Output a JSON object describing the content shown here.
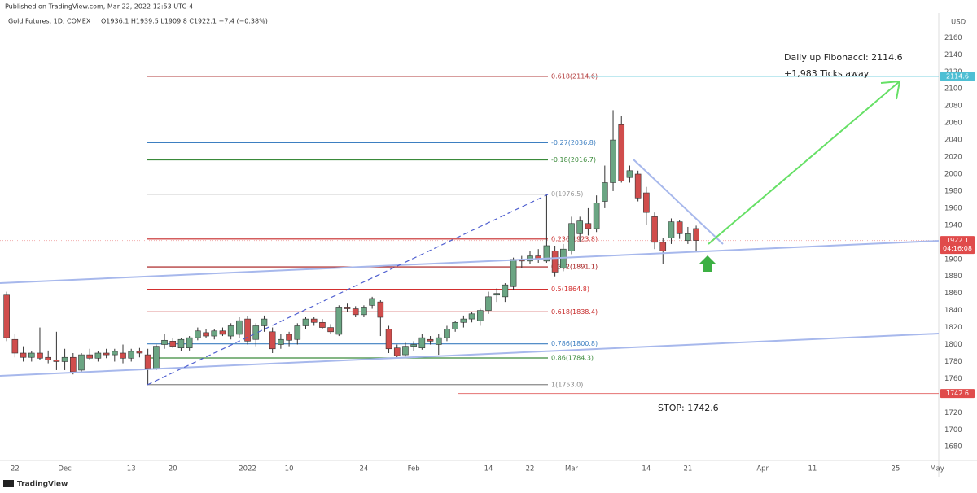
{
  "header": {
    "published": "Published on TradingView.com, Mar 22, 2022 12:53 UTC-4",
    "brand": "TradingView"
  },
  "chart_data": {
    "type": "candlestick",
    "title": "Gold Futures, 1D, COMEX",
    "ohlc_text": "O1936.1 H1939.5 L1909.8 C1922.1 −7.4 (−0.38%)",
    "currency": "USD",
    "up_color": "#6ba583",
    "down_color": "#d04d4c",
    "grid": false,
    "ylim": [
      1664,
      2189
    ],
    "yticks": [
      1680,
      1700,
      1720,
      1740,
      1760,
      1780,
      1800,
      1820,
      1840,
      1860,
      1880,
      1900,
      1920,
      1940,
      1960,
      1980,
      2000,
      2020,
      2040,
      2060,
      2080,
      2100,
      2120,
      2140,
      2160
    ],
    "xlim": [
      -0.8,
      112.1
    ],
    "xticks": [
      {
        "value": 1,
        "label": "22"
      },
      {
        "value": 7,
        "label": "Dec"
      },
      {
        "value": 15,
        "label": "13"
      },
      {
        "value": 20,
        "label": "20"
      },
      {
        "value": 29,
        "label": "2022"
      },
      {
        "value": 34,
        "label": "10"
      },
      {
        "value": 43,
        "label": "24"
      },
      {
        "value": 49,
        "label": "Feb"
      },
      {
        "value": 58,
        "label": "14"
      },
      {
        "value": 63,
        "label": "22"
      },
      {
        "value": 68,
        "label": "Mar"
      },
      {
        "value": 77,
        "label": "14"
      },
      {
        "value": 82,
        "label": "21"
      },
      {
        "value": 91,
        "label": "Apr"
      },
      {
        "value": 97,
        "label": "11"
      },
      {
        "value": 107,
        "label": "25"
      },
      {
        "value": 112,
        "label": "May"
      }
    ],
    "open": [
      1858,
      1806,
      1790,
      1785,
      1790,
      1785,
      1782,
      1780,
      1785,
      1770,
      1788,
      1784,
      1790,
      1788,
      1790,
      1784,
      1792,
      1788,
      1772,
      1800,
      1804,
      1796,
      1796,
      1808,
      1814,
      1810,
      1816,
      1810,
      1812,
      1830,
      1806,
      1822,
      1815,
      1800,
      1812,
      1806,
      1822,
      1830,
      1826,
      1820,
      1812,
      1844,
      1842,
      1835,
      1846,
      1850,
      1818,
      1796,
      1788,
      1798,
      1796,
      1806,
      1800,
      1808,
      1818,
      1826,
      1830,
      1828,
      1840,
      1858,
      1856,
      1868,
      1900,
      1898,
      1904,
      1898,
      1910,
      1890,
      1910,
      1930,
      1942,
      1936,
      1968,
      1990,
      2058,
      1996,
      2000,
      1978,
      1950,
      1920,
      1925,
      1944,
      1922,
      1936.1
    ],
    "high": [
      1862,
      1812,
      1798,
      1792,
      1820,
      1793,
      1815,
      1795,
      1790,
      1790,
      1795,
      1792,
      1795,
      1795,
      1800,
      1795,
      1796,
      1795,
      1800,
      1812,
      1808,
      1808,
      1810,
      1820,
      1818,
      1818,
      1820,
      1825,
      1832,
      1833,
      1825,
      1834,
      1820,
      1812,
      1815,
      1825,
      1832,
      1832,
      1830,
      1824,
      1846,
      1848,
      1845,
      1846,
      1856,
      1852,
      1822,
      1800,
      1802,
      1804,
      1812,
      1810,
      1812,
      1822,
      1828,
      1834,
      1838,
      1842,
      1862,
      1866,
      1872,
      1902,
      1904,
      1910,
      1912,
      1976,
      1916,
      1918,
      1950,
      1950,
      1960,
      1975,
      2010,
      2075,
      2068,
      2010,
      2004,
      1985,
      1955,
      1925,
      1948,
      1946,
      1938,
      1939.5
    ],
    "low": [
      1804,
      1785,
      1780,
      1780,
      1782,
      1778,
      1770,
      1770,
      1765,
      1768,
      1782,
      1780,
      1784,
      1780,
      1778,
      1780,
      1785,
      1753,
      1770,
      1795,
      1796,
      1792,
      1793,
      1805,
      1808,
      1806,
      1810,
      1806,
      1808,
      1800,
      1798,
      1815,
      1790,
      1795,
      1798,
      1800,
      1818,
      1822,
      1818,
      1812,
      1810,
      1838,
      1832,
      1832,
      1842,
      1810,
      1790,
      1784,
      1786,
      1792,
      1794,
      1800,
      1788,
      1804,
      1815,
      1820,
      1826,
      1822,
      1836,
      1850,
      1850,
      1864,
      1890,
      1895,
      1896,
      1896,
      1880,
      1886,
      1906,
      1920,
      1928,
      1932,
      1960,
      1980,
      1990,
      1990,
      1968,
      1940,
      1912,
      1895,
      1918,
      1924,
      1918,
      1909.8
    ],
    "close": [
      1808,
      1790,
      1785,
      1790,
      1784,
      1782,
      1780,
      1785,
      1768,
      1788,
      1784,
      1790,
      1788,
      1792,
      1784,
      1792,
      1790,
      1772,
      1798,
      1805,
      1798,
      1806,
      1808,
      1816,
      1810,
      1816,
      1812,
      1822,
      1828,
      1804,
      1822,
      1830,
      1795,
      1806,
      1805,
      1822,
      1830,
      1826,
      1820,
      1815,
      1844,
      1842,
      1835,
      1844,
      1854,
      1832,
      1795,
      1787,
      1798,
      1800,
      1808,
      1804,
      1808,
      1818,
      1826,
      1830,
      1836,
      1840,
      1856,
      1860,
      1870,
      1900,
      1898,
      1904,
      1900,
      1916,
      1885,
      1912,
      1942,
      1945,
      1936,
      1966,
      1990,
      2040,
      1992,
      2004,
      1972,
      1955,
      1920,
      1910,
      1944,
      1930,
      1930,
      1922.1
    ],
    "fib_levels": [
      {
        "value": 2114.6,
        "label": "0.618(2114.6)",
        "color": "#b23b3b"
      },
      {
        "value": 2036.8,
        "label": "-0.27(2036.8)",
        "color": "#3d7fc1"
      },
      {
        "value": 2016.7,
        "label": "-0.18(2016.7)",
        "color": "#3a8a3a"
      },
      {
        "value": 1976.5,
        "label": "0(1976.5)",
        "color": "#999999"
      },
      {
        "value": 1923.8,
        "label": "0.236(1923.8)",
        "color": "#c62828"
      },
      {
        "value": 1891.1,
        "label": "0.382(1891.1)",
        "color": "#a31515"
      },
      {
        "value": 1864.8,
        "label": "0.5(1864.8)",
        "color": "#d32f2f"
      },
      {
        "value": 1838.4,
        "label": "0.618(1838.4)",
        "color": "#c62828"
      },
      {
        "value": 1800.8,
        "label": "0.786(1800.8)",
        "color": "#3d7fc1"
      },
      {
        "value": 1784.3,
        "label": "0.86(1784.3)",
        "color": "#3a8a3a"
      },
      {
        "value": 1753.0,
        "label": "1(1753.0)",
        "color": "#888888"
      }
    ],
    "price_tags": [
      {
        "value": 2114.6,
        "color": "#4fbfd4"
      },
      {
        "value": 1922.1,
        "color": "#e04b4b"
      },
      {
        "value": 1742.6,
        "color": "#e04b4b"
      }
    ],
    "countdown": "04:16:08",
    "annotations": [
      "Daily up Fibonacci: 2114.6",
      "+1,983 Ticks away",
      "STOP: 1742.6"
    ]
  }
}
